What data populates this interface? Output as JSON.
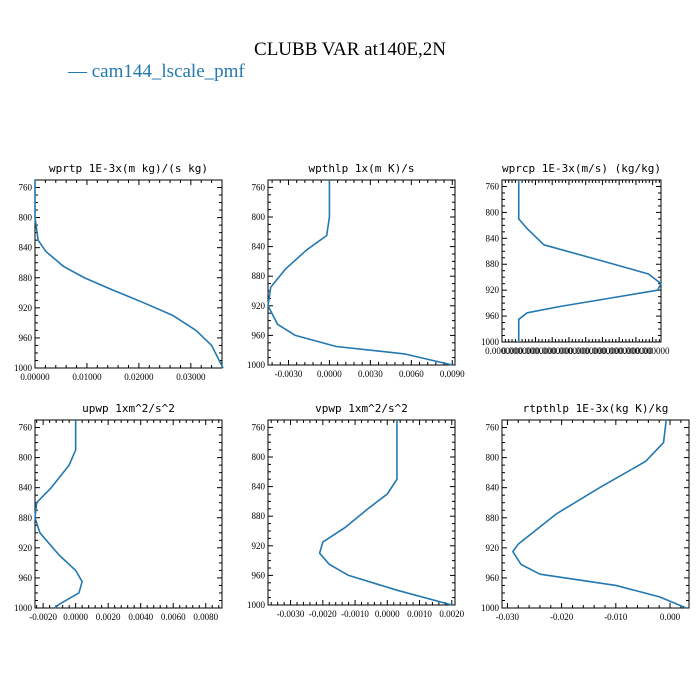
{
  "figure": {
    "title": "CLUBB VAR at140E,2N",
    "legend": [
      {
        "name": "cam144_lscale_pmf",
        "color": "#2278b0"
      }
    ]
  },
  "chart_data": [
    {
      "type": "line",
      "title": "wprtp  1E-3x(m kg)/(s kg)",
      "series_name": "cam144_lscale_pmf",
      "xlim": [
        0.0,
        0.036
      ],
      "ylim": [
        1000,
        750
      ],
      "y_reversed": true,
      "xticks": [
        0.0,
        0.01,
        0.02,
        0.03
      ],
      "xtick_labels": [
        "0.00000",
        "0.01000",
        "0.02000",
        "0.03000"
      ],
      "yticks": [
        760,
        800,
        840,
        880,
        920,
        960,
        1000
      ],
      "ytick_labels": [
        "760",
        "800",
        "840",
        "880",
        "920",
        "960",
        "1000"
      ],
      "x": [
        0.0,
        0.0,
        0.0006,
        0.0021,
        0.0055,
        0.0095,
        0.0145,
        0.0205,
        0.0265,
        0.031,
        0.034,
        0.0362
      ],
      "y": [
        750,
        800,
        830,
        845,
        865,
        880,
        895,
        912,
        930,
        950,
        970,
        1000
      ]
    },
    {
      "type": "line",
      "title": "wpthlp   1x(m K)/s",
      "series_name": "cam144_lscale_pmf",
      "xlim": [
        -0.0045,
        0.0092
      ],
      "ylim": [
        1000,
        750
      ],
      "y_reversed": true,
      "xticks": [
        -0.003,
        0.0,
        0.003,
        0.006,
        0.009
      ],
      "xtick_labels": [
        "-0.0030",
        "0.0000",
        "0.0030",
        "0.0060",
        "0.0090"
      ],
      "yticks": [
        760,
        800,
        840,
        880,
        920,
        960,
        1000
      ],
      "ytick_labels": [
        "760",
        "800",
        "840",
        "880",
        "920",
        "960",
        "1000"
      ],
      "x": [
        0.0,
        0.0,
        -0.0002,
        -0.0017,
        -0.0032,
        -0.0043,
        -0.0045,
        -0.0038,
        -0.0025,
        0.0005,
        0.0055,
        0.009
      ],
      "y": [
        750,
        800,
        825,
        845,
        870,
        895,
        920,
        945,
        960,
        975,
        985,
        1000
      ]
    },
    {
      "type": "line",
      "title": "wprcp  1E-3x(m/s) (kg/kg)",
      "series_name": "cam144_lscale_pmf",
      "xlim": [
        0.0,
        9.5e-07
      ],
      "ylim": [
        1000,
        750
      ],
      "y_reversed": true,
      "xticks": [
        0.0,
        1e-07,
        2e-07,
        3e-07,
        4e-07,
        5e-07,
        6e-07,
        7e-07,
        8e-07,
        9e-07
      ],
      "xtick_labels": [
        "0.000000",
        "0.000000",
        "0.000000",
        "0.000000",
        "0.000000",
        "0.000000",
        "0.000000",
        "0.000000",
        "0.000000",
        "0.000000"
      ],
      "yticks": [
        760,
        800,
        840,
        880,
        920,
        960,
        1000
      ],
      "ytick_labels": [
        "760",
        "800",
        "840",
        "880",
        "920",
        "960",
        "1000"
      ],
      "x": [
        1e-07,
        1e-07,
        1.5e-07,
        2.5e-07,
        6e-07,
        8.75e-07,
        9.5e-07,
        9.3e-07,
        7e-07,
        3.5e-07,
        1.5e-07,
        1e-07,
        1e-07
      ],
      "y": [
        750,
        810,
        825,
        850,
        875,
        895,
        910,
        920,
        930,
        945,
        955,
        965,
        1000
      ]
    },
    {
      "type": "line",
      "title": "upwp   1xm^2/s^2",
      "series_name": "cam144_lscale_pmf",
      "xlim": [
        -0.0025,
        0.009
      ],
      "ylim": [
        1000,
        750
      ],
      "y_reversed": true,
      "xticks": [
        -0.002,
        0.0,
        0.002,
        0.004,
        0.006,
        0.008
      ],
      "xtick_labels": [
        "-0.0020",
        "0.0000",
        "0.0020",
        "0.0040",
        "0.0060",
        "0.0080"
      ],
      "yticks": [
        760,
        800,
        840,
        880,
        920,
        960,
        1000
      ],
      "ytick_labels": [
        "760",
        "800",
        "840",
        "880",
        "920",
        "960",
        "1000"
      ],
      "x": [
        0.0,
        0.0,
        -0.0004,
        -0.0015,
        -0.0024,
        -0.0025,
        -0.0022,
        -0.001,
        0.0,
        0.0004,
        0.0002,
        -0.001,
        -0.0013
      ],
      "y": [
        750,
        790,
        810,
        840,
        860,
        880,
        900,
        930,
        950,
        965,
        980,
        995,
        1000
      ]
    },
    {
      "type": "line",
      "title": "vpwp   1xm^2/s^2",
      "series_name": "cam144_lscale_pmf",
      "xlim": [
        -0.0037,
        0.0021
      ],
      "ylim": [
        1000,
        750
      ],
      "y_reversed": true,
      "xticks": [
        -0.003,
        -0.002,
        -0.001,
        0.0,
        0.001,
        0.002
      ],
      "xtick_labels": [
        "-0.0030",
        "-0.0020",
        "-0.0010",
        "0.0000",
        "0.0010",
        "0.0020"
      ],
      "yticks": [
        760,
        800,
        840,
        880,
        920,
        960,
        1000
      ],
      "ytick_labels": [
        "760",
        "800",
        "840",
        "880",
        "920",
        "960",
        "1000"
      ],
      "x": [
        0.0003,
        0.0003,
        0.0,
        -0.0006,
        -0.0013,
        -0.002,
        -0.0021,
        -0.0018,
        -0.0012,
        0.0003,
        0.002
      ],
      "y": [
        750,
        830,
        850,
        870,
        895,
        915,
        930,
        945,
        960,
        980,
        1000
      ]
    },
    {
      "type": "line",
      "title": "rtpthlp   1E-3x(kg K)/kg",
      "series_name": "cam144_lscale_pmf",
      "xlim": [
        -0.031,
        0.0035
      ],
      "ylim": [
        1000,
        750
      ],
      "y_reversed": true,
      "xticks": [
        -0.03,
        -0.02,
        -0.01,
        0.0
      ],
      "xtick_labels": [
        "-0.030",
        "-0.020",
        "-0.010",
        "0.000"
      ],
      "yticks": [
        760,
        800,
        840,
        880,
        920,
        960,
        1000
      ],
      "ytick_labels": [
        "760",
        "800",
        "840",
        "880",
        "920",
        "960",
        "1000"
      ],
      "x": [
        -0.0007,
        -0.0012,
        -0.0045,
        -0.013,
        -0.021,
        -0.028,
        -0.029,
        -0.0275,
        -0.024,
        -0.01,
        -0.002,
        0.003
      ],
      "y": [
        750,
        780,
        805,
        840,
        875,
        915,
        925,
        942,
        955,
        970,
        985,
        1000
      ]
    }
  ]
}
